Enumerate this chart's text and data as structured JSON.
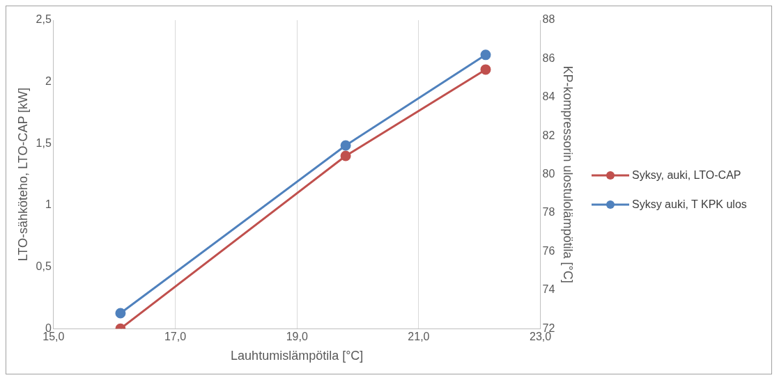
{
  "chart_data": {
    "type": "line",
    "xlabel": "Lauhtumislämpötila [°C]",
    "ylabel": "LTO-sähköteho, LTO-CAP [kW]",
    "y2label": "KP-kompressorin ulostulolämpötila [°C]",
    "x": [
      16.1,
      19.8,
      22.1
    ],
    "series": [
      {
        "name": "Syksy, auki, LTO-CAP",
        "color": "#c0504d",
        "values": [
          0,
          1.4,
          2.1
        ]
      },
      {
        "name": "Syksy auki, T KPK ulos",
        "color": "#4f81bd",
        "values": [
          72.8,
          81.5,
          86.2
        ],
        "axis": "y2"
      }
    ],
    "xlim": [
      15,
      23
    ],
    "xticks": [
      {
        "value": 15,
        "label": "15,0"
      },
      {
        "value": 17,
        "label": "17,0"
      },
      {
        "value": 19,
        "label": "19,0"
      },
      {
        "value": 21,
        "label": "21,0"
      },
      {
        "value": 23,
        "label": "23,0"
      }
    ],
    "ylim": [
      0,
      2.5
    ],
    "yticks": [
      0,
      {
        "value": 0.5,
        "label": "0,5"
      },
      1,
      {
        "value": 1.5,
        "label": "1,5"
      },
      2,
      {
        "value": 2.5,
        "label": "2,5"
      }
    ],
    "y2lim": [
      72,
      88
    ],
    "y2ticks": [
      72,
      74,
      76,
      78,
      80,
      82,
      84,
      86,
      88
    ],
    "grid": "x",
    "legend": "right",
    "marker": "circle",
    "line_style": "solid"
  }
}
